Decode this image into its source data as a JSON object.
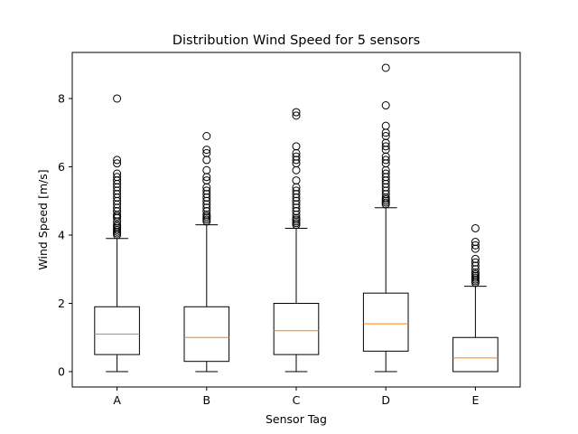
{
  "chart_data": {
    "type": "box",
    "title": "Distribution Wind Speed for 5 sensors",
    "xlabel": "Sensor Tag",
    "ylabel": "Wind Speed [m/s]",
    "ylim": [
      -0.45,
      9.35
    ],
    "yticks": [
      0,
      2,
      4,
      6,
      8
    ],
    "grid": false,
    "categories": [
      "A",
      "B",
      "C",
      "D",
      "E"
    ],
    "boxes": [
      {
        "name": "A",
        "whisker_low": 0,
        "q1": 0.5,
        "median": 1.1,
        "q3": 1.9,
        "whisker_high": 3.9,
        "outliers": [
          4.0,
          4.05,
          4.1,
          4.15,
          4.2,
          4.25,
          4.3,
          4.4,
          4.5,
          4.55,
          4.6,
          4.7,
          4.8,
          4.9,
          5.0,
          5.1,
          5.2,
          5.3,
          5.4,
          5.5,
          5.6,
          5.7,
          5.8,
          6.1,
          6.2,
          8.0
        ]
      },
      {
        "name": "B",
        "whisker_low": 0,
        "q1": 0.3,
        "median": 1.0,
        "q3": 1.9,
        "whisker_high": 4.3,
        "outliers": [
          4.4,
          4.45,
          4.5,
          4.55,
          4.6,
          4.7,
          4.8,
          4.9,
          5.0,
          5.1,
          5.2,
          5.3,
          5.4,
          5.6,
          5.7,
          5.9,
          6.2,
          6.4,
          6.5,
          6.9
        ]
      },
      {
        "name": "C",
        "whisker_low": 0,
        "q1": 0.5,
        "median": 1.2,
        "q3": 2.0,
        "whisker_high": 4.2,
        "outliers": [
          4.3,
          4.35,
          4.4,
          4.45,
          4.5,
          4.6,
          4.7,
          4.8,
          4.9,
          5.0,
          5.1,
          5.2,
          5.3,
          5.4,
          5.6,
          5.9,
          6.1,
          6.2,
          6.3,
          6.4,
          6.6,
          7.5,
          7.6
        ]
      },
      {
        "name": "D",
        "whisker_low": 0,
        "q1": 0.6,
        "median": 1.4,
        "q3": 2.3,
        "whisker_high": 4.8,
        "outliers": [
          4.9,
          4.95,
          5.0,
          5.05,
          5.1,
          5.2,
          5.3,
          5.4,
          5.5,
          5.6,
          5.7,
          5.8,
          5.9,
          6.1,
          6.2,
          6.3,
          6.5,
          6.6,
          6.7,
          6.9,
          7.0,
          7.2,
          7.8,
          8.9
        ]
      },
      {
        "name": "E",
        "whisker_low": 0,
        "q1": 0.0,
        "median": 0.4,
        "q3": 1.0,
        "whisker_high": 2.5,
        "outliers": [
          2.6,
          2.65,
          2.7,
          2.75,
          2.8,
          2.85,
          2.9,
          3.0,
          3.1,
          3.2,
          3.3,
          3.6,
          3.7,
          3.8,
          4.2
        ]
      }
    ],
    "colors": {
      "box": "#000000",
      "median": "#ff7f0e",
      "outlier": "#000000"
    }
  }
}
